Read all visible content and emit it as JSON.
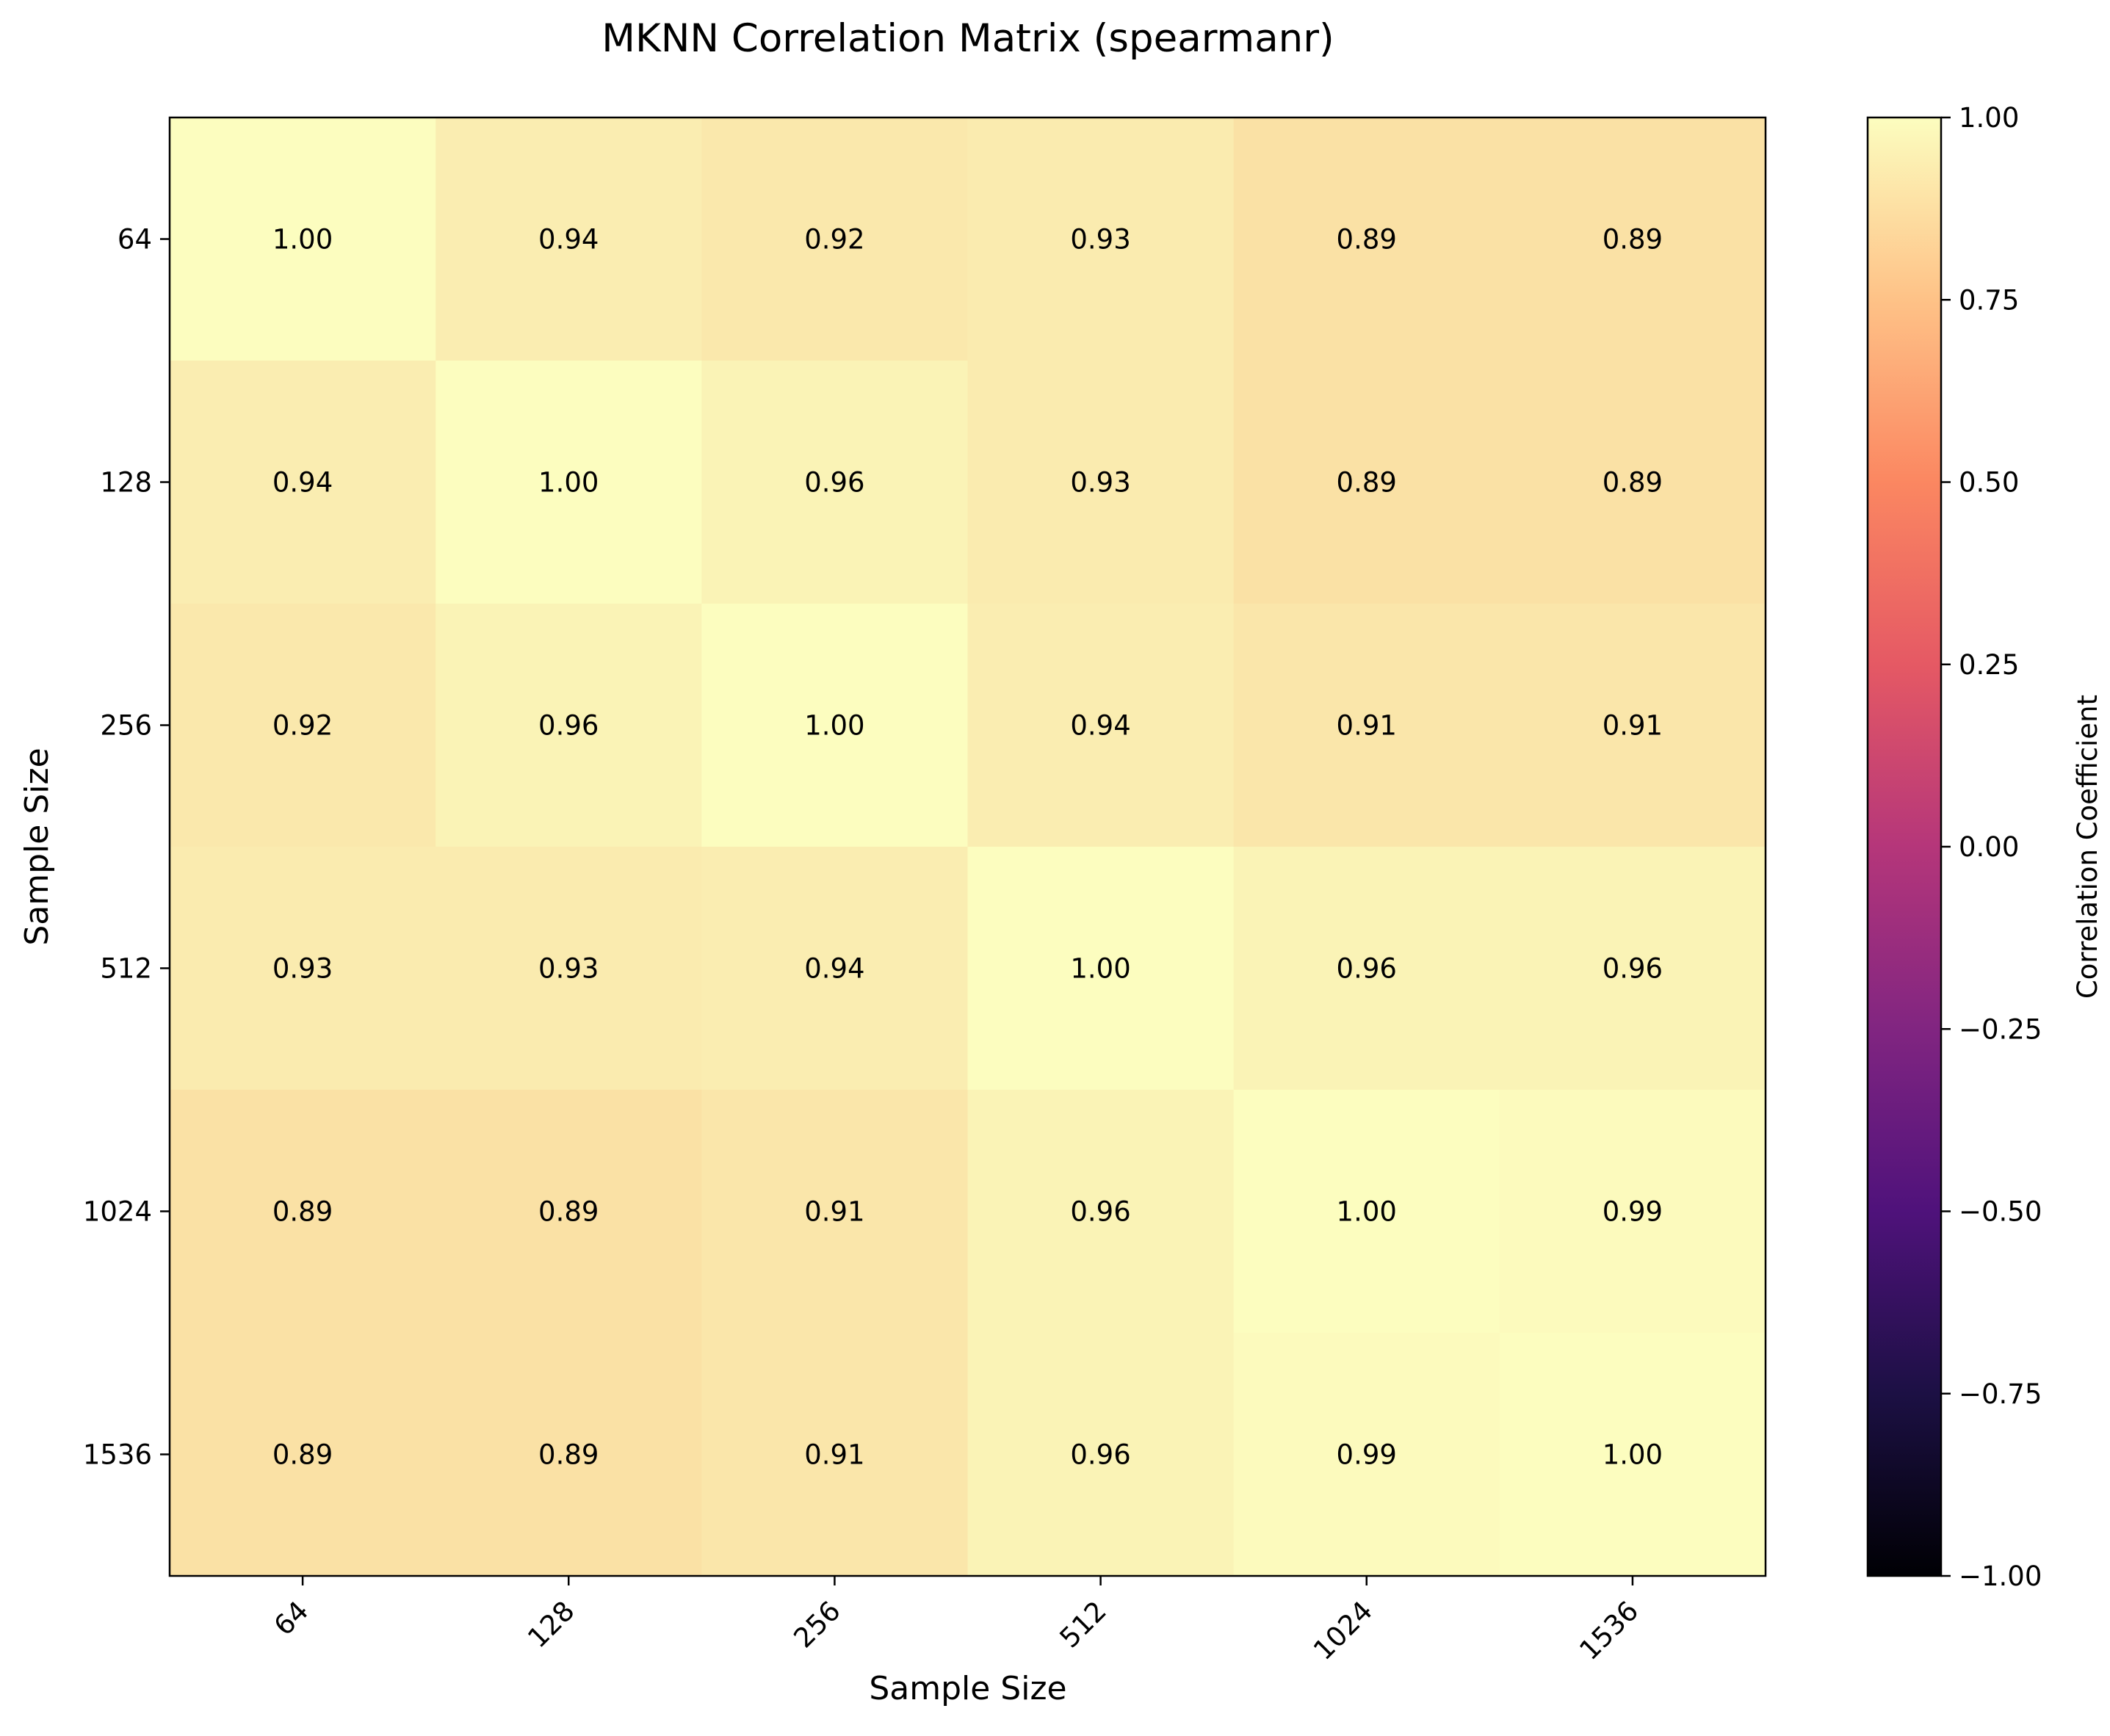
{
  "chart_data": {
    "type": "heatmap",
    "title": "MKNN Correlation Matrix (spearmanr)",
    "xlabel": "Sample Size",
    "ylabel": "Sample Size",
    "x_categories": [
      "64",
      "128",
      "256",
      "512",
      "1024",
      "1536"
    ],
    "y_categories": [
      "64",
      "128",
      "256",
      "512",
      "1024",
      "1536"
    ],
    "values": [
      [
        1.0,
        0.94,
        0.92,
        0.93,
        0.89,
        0.89
      ],
      [
        0.94,
        1.0,
        0.96,
        0.93,
        0.89,
        0.89
      ],
      [
        0.92,
        0.96,
        1.0,
        0.94,
        0.91,
        0.91
      ],
      [
        0.93,
        0.93,
        0.94,
        1.0,
        0.96,
        0.96
      ],
      [
        0.89,
        0.89,
        0.91,
        0.96,
        1.0,
        0.99
      ],
      [
        0.89,
        0.89,
        0.91,
        0.96,
        0.99,
        1.0
      ]
    ],
    "value_format_decimals": 2,
    "colormap": "magma",
    "colorbar": {
      "label": "Correlation Coefficient",
      "range": [
        -1.0,
        1.0
      ],
      "ticks": [
        "1.00",
        "0.75",
        "0.50",
        "0.25",
        "0.00",
        "−0.25",
        "−0.50",
        "−0.75",
        "−1.00"
      ],
      "tick_values": [
        1.0,
        0.75,
        0.5,
        0.25,
        0.0,
        -0.25,
        -0.5,
        -0.75,
        -1.0
      ],
      "placement": "right"
    },
    "x_tick_rotation_deg": 45,
    "grid": false
  }
}
